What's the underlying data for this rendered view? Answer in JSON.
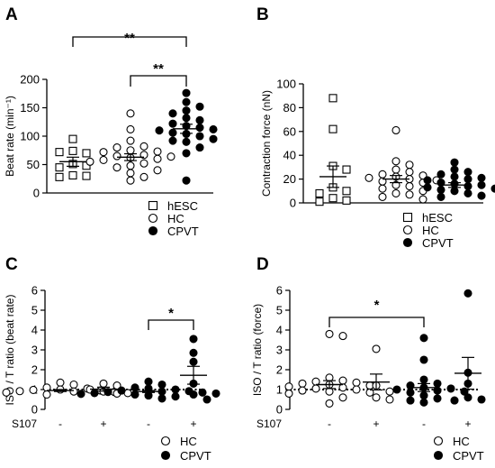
{
  "figure": {
    "panels": [
      "A",
      "B",
      "C",
      "D"
    ]
  },
  "chart_data": [
    {
      "panel": "A",
      "type": "scatter",
      "ylabel": "Beat rate (min⁻¹)",
      "ylim": [
        0,
        200
      ],
      "yticks": [
        "0",
        "50",
        "100",
        "150",
        "200"
      ],
      "groups": [
        {
          "name": "hESC",
          "marker": "open-square",
          "mean": 55,
          "sem": 8,
          "values": [
            95,
            74,
            70,
            72,
            51,
            48,
            45,
            31,
            30,
            28
          ]
        },
        {
          "name": "HC",
          "marker": "open-circle",
          "mean": 63,
          "sem": 6,
          "values": [
            140,
            112,
            92,
            82,
            80,
            75,
            73,
            72,
            67,
            65,
            64,
            62,
            60,
            58,
            55,
            52,
            48,
            45,
            40,
            35,
            28,
            22
          ]
        },
        {
          "name": "CPVT",
          "marker": "filled-circle",
          "mean": 113,
          "sem": 8,
          "values": [
            176,
            160,
            152,
            145,
            140,
            132,
            128,
            122,
            118,
            115,
            112,
            110,
            106,
            104,
            100,
            95,
            92,
            90,
            80,
            70,
            22
          ]
        }
      ],
      "significance": [
        {
          "from": "hESC",
          "to": "CPVT",
          "label": "**"
        },
        {
          "from": "HC",
          "to": "CPVT",
          "label": "**"
        }
      ],
      "legend": [
        "hESC",
        "HC",
        "CPVT"
      ]
    },
    {
      "panel": "B",
      "type": "scatter",
      "ylabel": "Contraction force (nN)",
      "ylim": [
        0,
        100
      ],
      "yticks": [
        "0",
        "20",
        "40",
        "60",
        "80",
        "100"
      ],
      "groups": [
        {
          "name": "hESC",
          "marker": "open-square",
          "mean": 22,
          "sem": 9,
          "values": [
            88,
            62,
            31,
            28,
            13,
            10,
            8,
            4,
            2,
            1
          ]
        },
        {
          "name": "HC",
          "marker": "open-circle",
          "mean": 20,
          "sem": 3,
          "values": [
            61,
            35,
            32,
            28,
            26,
            24,
            23,
            22,
            21,
            20,
            19,
            18,
            17,
            15,
            14,
            12,
            10,
            8,
            7,
            5,
            3
          ]
        },
        {
          "name": "CPVT",
          "marker": "filled-circle",
          "mean": 15,
          "sem": 2,
          "values": [
            34,
            28,
            26,
            24,
            22,
            21,
            20,
            19,
            17,
            16,
            15,
            14,
            13,
            12,
            11,
            10,
            8,
            6,
            5
          ]
        }
      ],
      "legend": [
        "hESC",
        "HC",
        "CPVT"
      ]
    },
    {
      "panel": "C",
      "type": "scatter",
      "ylabel": "ISO / T ratio (beat rate)",
      "ylim": [
        0,
        6
      ],
      "yticks": [
        "0",
        "1",
        "2",
        "3",
        "4",
        "5",
        "6"
      ],
      "reference_line": 1,
      "x_row_label": "S107",
      "x_row_values": [
        "-",
        "+",
        "-",
        "+"
      ],
      "groups": [
        {
          "name": "HC",
          "marker": "open-circle",
          "mean": 0.95,
          "sem": 0.05,
          "values": [
            1.35,
            1.25,
            1.1,
            1.05,
            1.0,
            0.98,
            0.95,
            0.92,
            0.9,
            0.88,
            0.85,
            0.82,
            0.8,
            0.78,
            0.75
          ]
        },
        {
          "name": "HC",
          "marker": "open-circle",
          "mean": 1.02,
          "sem": 0.1,
          "values": [
            1.3,
            1.2,
            1.0,
            0.9,
            0.8
          ]
        },
        {
          "name": "CPVT",
          "marker": "filled-circle",
          "mean": 0.9,
          "sem": 0.05,
          "values": [
            1.4,
            1.25,
            1.1,
            1.05,
            1.0,
            0.95,
            0.92,
            0.9,
            0.88,
            0.85,
            0.82,
            0.8,
            0.78,
            0.75,
            0.7,
            0.65,
            0.55
          ]
        },
        {
          "name": "CPVT",
          "marker": "filled-circle",
          "mean": 1.72,
          "sem": 0.45,
          "values": [
            3.55,
            2.85,
            2.4,
            1.3,
            0.75,
            0.5
          ]
        }
      ],
      "significance": [
        {
          "from_index": 2,
          "to_index": 3,
          "label": "*"
        }
      ],
      "legend": [
        "HC",
        "CPVT"
      ]
    },
    {
      "panel": "D",
      "type": "scatter",
      "ylabel": "ISO / T ratio (force)",
      "ylim": [
        0,
        6
      ],
      "yticks": [
        "0",
        "1",
        "2",
        "3",
        "4",
        "5",
        "6"
      ],
      "reference_line": 1,
      "x_row_label": "S107",
      "x_row_values": [
        "-",
        "+",
        "-",
        "+"
      ],
      "groups": [
        {
          "name": "HC",
          "marker": "open-circle",
          "mean": 1.25,
          "sem": 0.2,
          "values": [
            3.8,
            3.7,
            1.6,
            1.45,
            1.4,
            1.35,
            1.3,
            1.25,
            1.2,
            1.15,
            1.1,
            1.05,
            1.0,
            0.95,
            0.9,
            0.85,
            0.8,
            0.6,
            0.3
          ]
        },
        {
          "name": "HC",
          "marker": "open-circle",
          "mean": 1.38,
          "sem": 0.4,
          "values": [
            3.05,
            1.2,
            0.9,
            0.6,
            0.5
          ]
        },
        {
          "name": "CPVT",
          "marker": "filled-circle",
          "mean": 1.1,
          "sem": 0.2,
          "values": [
            3.6,
            2.5,
            1.5,
            1.3,
            1.2,
            1.1,
            1.05,
            1.0,
            0.95,
            0.9,
            0.85,
            0.7,
            0.55,
            0.45,
            0.35
          ]
        },
        {
          "name": "CPVT",
          "marker": "filled-circle",
          "mean": 1.82,
          "sem": 0.8,
          "values": [
            5.85,
            1.85,
            1.3,
            0.6,
            0.5,
            0.45
          ]
        }
      ],
      "significance": [
        {
          "from_index": 0,
          "to_index": 2,
          "label": "*"
        }
      ],
      "legend": [
        "HC",
        "CPVT"
      ]
    }
  ]
}
